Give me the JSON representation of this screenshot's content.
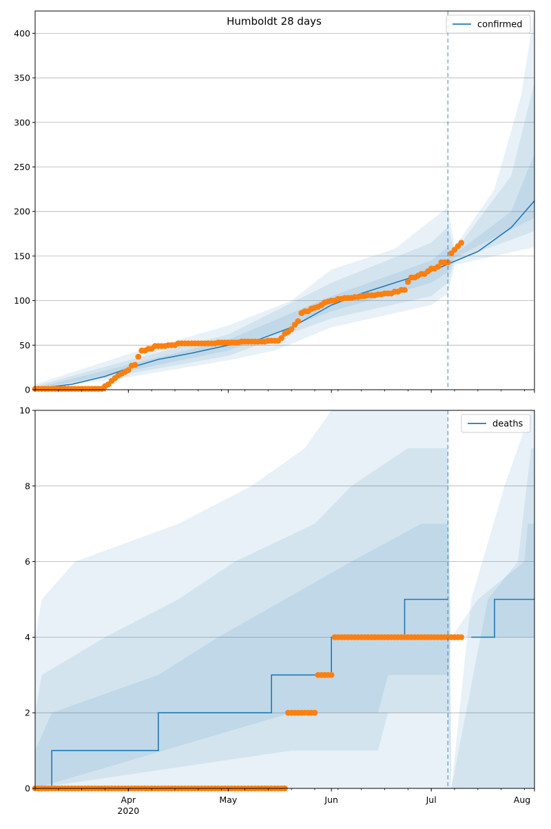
{
  "figure": {
    "title": "Humboldt 28 days"
  },
  "colors": {
    "line": "#1f77b4",
    "points": "#ff7f0e",
    "band": "#1f77b4",
    "grid": "#b0b0b0"
  },
  "x_axis": {
    "start": "2020-03-04",
    "end": "2020-08-01",
    "vline_date": "2020-07-06",
    "month_labels": [
      {
        "date": "2020-04-01",
        "label": "Apr"
      },
      {
        "date": "2020-05-01",
        "label": "May"
      },
      {
        "date": "2020-06-01",
        "label": "Jun"
      },
      {
        "date": "2020-07-01",
        "label": "Jul"
      },
      {
        "date": "2020-08-01",
        "label": "Aug"
      }
    ],
    "year_label": "2020"
  },
  "chart_data": [
    {
      "type": "line",
      "legend": "confirmed",
      "legend_position": "top-right",
      "grid": "horizontal",
      "ylim": [
        0,
        425
      ],
      "yticks": [
        0,
        50,
        100,
        150,
        200,
        250,
        300,
        350,
        400
      ],
      "ytick_labels": [
        "0",
        "50",
        "100",
        "150",
        "200",
        "250",
        "300",
        "350",
        "400"
      ],
      "median": [
        [
          "2020-03-04",
          1
        ],
        [
          "2020-03-15",
          6
        ],
        [
          "2020-03-25",
          15
        ],
        [
          "2020-04-01",
          24
        ],
        [
          "2020-04-10",
          34
        ],
        [
          "2020-04-20",
          41
        ],
        [
          "2020-05-01",
          50
        ],
        [
          "2020-05-10",
          56
        ],
        [
          "2020-05-20",
          70
        ],
        [
          "2020-06-01",
          95
        ],
        [
          "2020-06-10",
          108
        ],
        [
          "2020-06-20",
          120
        ],
        [
          "2020-07-01",
          133
        ],
        [
          "2020-07-06",
          141
        ],
        [
          "2020-07-15",
          155
        ],
        [
          "2020-07-25",
          182
        ],
        [
          "2020-08-01",
          212
        ]
      ],
      "bands": [
        {
          "lower": [
            [
              "2020-03-04",
              0
            ],
            [
              "2020-04-01",
              14
            ],
            [
              "2020-05-01",
              33
            ],
            [
              "2020-05-15",
              44
            ],
            [
              "2020-06-01",
              70
            ],
            [
              "2020-07-01",
              95
            ],
            [
              "2020-07-06",
              108
            ],
            [
              "2020-07-08",
              140
            ],
            [
              "2020-08-01",
              160
            ]
          ],
          "upper": [
            [
              "2020-03-04",
              6
            ],
            [
              "2020-04-01",
              40
            ],
            [
              "2020-05-01",
              72
            ],
            [
              "2020-05-20",
              100
            ],
            [
              "2020-06-01",
              135
            ],
            [
              "2020-06-20",
              158
            ],
            [
              "2020-07-06",
              205
            ],
            [
              "2020-07-08",
              160
            ],
            [
              "2020-07-20",
              225
            ],
            [
              "2020-07-28",
              330
            ],
            [
              "2020-08-01",
              425
            ]
          ]
        },
        {
          "lower": [
            [
              "2020-03-04",
              0
            ],
            [
              "2020-04-01",
              18
            ],
            [
              "2020-05-01",
              38
            ],
            [
              "2020-06-01",
              80
            ],
            [
              "2020-07-01",
              105
            ],
            [
              "2020-07-06",
              120
            ],
            [
              "2020-07-08",
              145
            ],
            [
              "2020-08-01",
              178
            ]
          ],
          "upper": [
            [
              "2020-03-04",
              4
            ],
            [
              "2020-04-01",
              33
            ],
            [
              "2020-05-01",
              62
            ],
            [
              "2020-06-01",
              120
            ],
            [
              "2020-07-01",
              165
            ],
            [
              "2020-07-06",
              183
            ],
            [
              "2020-07-08",
              155
            ],
            [
              "2020-07-25",
              240
            ],
            [
              "2020-08-01",
              345
            ]
          ]
        },
        {
          "lower": [
            [
              "2020-03-04",
              0
            ],
            [
              "2020-04-01",
              21
            ],
            [
              "2020-05-01",
              44
            ],
            [
              "2020-06-01",
              88
            ],
            [
              "2020-07-01",
              120
            ],
            [
              "2020-07-06",
              132
            ],
            [
              "2020-07-08",
              148
            ],
            [
              "2020-08-01",
              193
            ]
          ],
          "upper": [
            [
              "2020-03-04",
              2
            ],
            [
              "2020-04-01",
              28
            ],
            [
              "2020-05-01",
              56
            ],
            [
              "2020-06-01",
              105
            ],
            [
              "2020-07-01",
              145
            ],
            [
              "2020-07-06",
              160
            ],
            [
              "2020-07-08",
              152
            ],
            [
              "2020-07-25",
              200
            ],
            [
              "2020-08-01",
              265
            ]
          ]
        }
      ],
      "observed": [
        {
          "from": "2020-03-04",
          "to": "2020-03-24",
          "values": [
            1
          ]
        },
        {
          "from": "2020-03-25",
          "to": "2020-03-31",
          "values": [
            4,
            6,
            10,
            13,
            16,
            18,
            20
          ]
        },
        {
          "from": "2020-04-01",
          "to": "2020-04-06",
          "values": [
            22,
            27,
            28,
            37,
            44,
            44
          ]
        },
        {
          "from": "2020-04-07",
          "to": "2020-04-15",
          "values": [
            46,
            49,
            50
          ]
        },
        {
          "from": "2020-04-16",
          "to": "2020-05-16",
          "values": [
            52,
            52,
            53,
            54,
            55
          ]
        },
        {
          "from": "2020-05-17",
          "to": "2020-05-31",
          "values": [
            58,
            63,
            65,
            68,
            73,
            77,
            86,
            88,
            88,
            91,
            92,
            93,
            95,
            98,
            99
          ]
        },
        {
          "from": "2020-06-01",
          "to": "2020-06-23",
          "values": [
            100,
            102,
            103,
            104,
            105,
            106,
            107,
            108,
            110,
            112
          ]
        },
        {
          "from": "2020-06-24",
          "to": "2020-07-06",
          "values": [
            121,
            126,
            128,
            130,
            133,
            136,
            138,
            143,
            143
          ]
        },
        {
          "from": "2020-07-07",
          "to": "2020-07-10",
          "values": [
            153,
            157,
            161,
            165
          ]
        }
      ]
    },
    {
      "type": "line",
      "legend": "deaths",
      "legend_position": "top-right",
      "grid": "horizontal",
      "ylim": [
        0,
        10
      ],
      "yticks": [
        0,
        2,
        4,
        6,
        8,
        10
      ],
      "ytick_labels": [
        "0",
        "2",
        "4",
        "6",
        "8",
        "10"
      ],
      "median_steps": [
        [
          "2020-03-04",
          0
        ],
        [
          "2020-03-09",
          1
        ],
        [
          "2020-04-10",
          2
        ],
        [
          "2020-05-14",
          3
        ],
        [
          "2020-06-01",
          4
        ],
        [
          "2020-06-23",
          5
        ],
        [
          "2020-07-06",
          null
        ],
        [
          "2020-07-13",
          4
        ],
        [
          "2020-07-20",
          5
        ],
        [
          "2020-08-01",
          5
        ]
      ],
      "bands": [
        {
          "lower": [
            [
              "2020-03-04",
              0
            ],
            [
              "2020-08-01",
              0
            ]
          ],
          "upper": [
            [
              "2020-03-04",
              4
            ],
            [
              "2020-03-06",
              5
            ],
            [
              "2020-03-16",
              6
            ],
            [
              "2020-04-16",
              7
            ],
            [
              "2020-05-08",
              8
            ],
            [
              "2020-05-24",
              9
            ],
            [
              "2020-06-01",
              10
            ],
            [
              "2020-07-06",
              10
            ],
            [
              "2020-07-07",
              0
            ],
            [
              "2020-07-13",
              5
            ],
            [
              "2020-07-23",
              8
            ],
            [
              "2020-07-27",
              9
            ],
            [
              "2020-07-31",
              10
            ],
            [
              "2020-08-01",
              10
            ]
          ]
        },
        {
          "lower": [
            [
              "2020-03-04",
              0
            ],
            [
              "2020-05-20",
              1
            ],
            [
              "2020-06-15",
              1
            ],
            [
              "2020-06-18",
              2
            ],
            [
              "2020-07-06",
              2
            ],
            [
              "2020-07-07",
              0
            ],
            [
              "2020-08-01",
              0
            ]
          ],
          "upper": [
            [
              "2020-03-04",
              2
            ],
            [
              "2020-03-06",
              3
            ],
            [
              "2020-03-25",
              4
            ],
            [
              "2020-04-16",
              5
            ],
            [
              "2020-05-03",
              6
            ],
            [
              "2020-05-27",
              7
            ],
            [
              "2020-06-07",
              8
            ],
            [
              "2020-06-24",
              9
            ],
            [
              "2020-07-06",
              9
            ],
            [
              "2020-07-07",
              0
            ],
            [
              "2020-07-18",
              5
            ],
            [
              "2020-07-27",
              6
            ],
            [
              "2020-07-31",
              9
            ],
            [
              "2020-08-01",
              9
            ]
          ]
        },
        {
          "lower": [
            [
              "2020-03-04",
              0
            ],
            [
              "2020-05-20",
              2
            ],
            [
              "2020-06-15",
              2
            ],
            [
              "2020-06-18",
              3
            ],
            [
              "2020-07-06",
              3
            ],
            [
              "2020-07-07",
              4
            ],
            [
              "2020-08-01",
              4
            ]
          ],
          "upper": [
            [
              "2020-03-04",
              1
            ],
            [
              "2020-03-09",
              2
            ],
            [
              "2020-04-10",
              3
            ],
            [
              "2020-04-28",
              4
            ],
            [
              "2020-05-18",
              5
            ],
            [
              "2020-06-07",
              6
            ],
            [
              "2020-06-28",
              7
            ],
            [
              "2020-07-06",
              7
            ],
            [
              "2020-07-07",
              4
            ],
            [
              "2020-07-15",
              5
            ],
            [
              "2020-07-29",
              6
            ],
            [
              "2020-07-30",
              7
            ],
            [
              "2020-08-01",
              7
            ]
          ]
        }
      ],
      "observed": [
        {
          "from": "2020-03-04",
          "to": "2020-05-18",
          "values": [
            0
          ]
        },
        {
          "from": "2020-05-19",
          "to": "2020-05-27",
          "values": [
            2
          ]
        },
        {
          "from": "2020-05-28",
          "to": "2020-06-01",
          "values": [
            3
          ]
        },
        {
          "from": "2020-06-02",
          "to": "2020-07-10",
          "values": [
            4
          ]
        }
      ]
    }
  ]
}
